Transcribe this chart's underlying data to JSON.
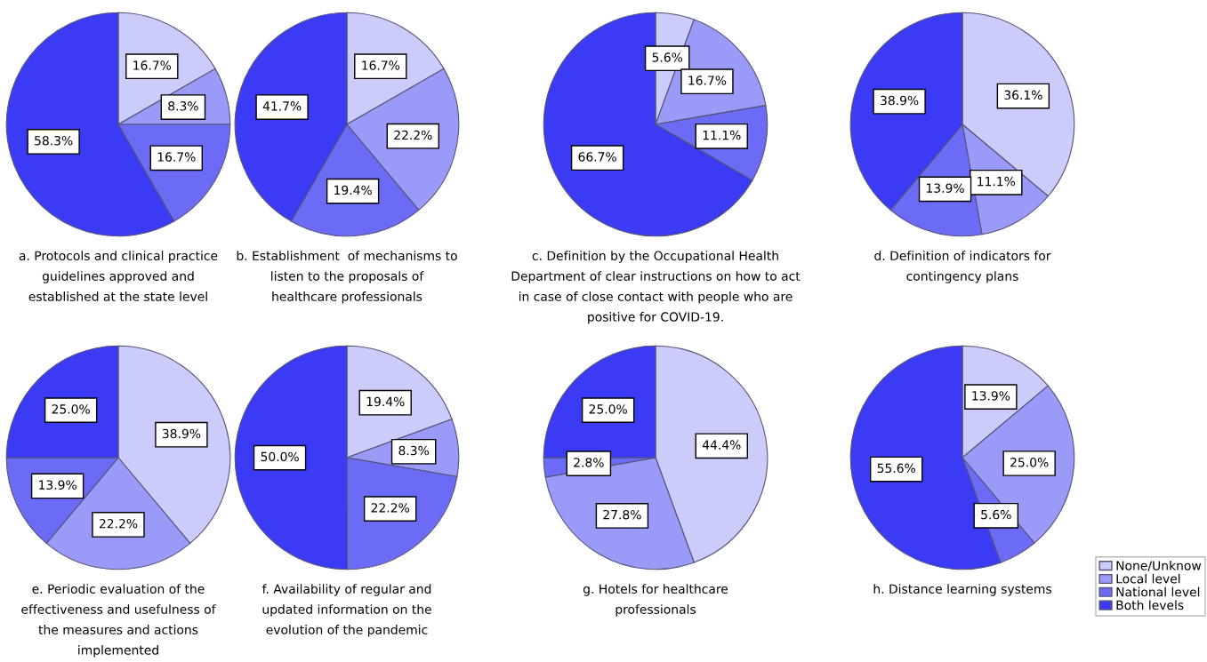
{
  "chart_data": [
    {
      "type": "pie",
      "title": "a. Protocols and clinical practice\nguidelines approved and\nestablished at the state level",
      "categories": [
        "None/Unknow",
        "Local level",
        "National level",
        "Both levels"
      ],
      "values": [
        16.7,
        8.3,
        16.7,
        58.3
      ],
      "colors": [
        "#ccccfa",
        "#9a9af8",
        "#6b6bf6",
        "#3b3bf5"
      ],
      "value_labels": [
        "16.7%",
        "8.3%",
        "16.7%",
        "58.3%"
      ],
      "legend": "right"
    },
    {
      "type": "pie",
      "title": "b. Establishment  of mechanisms to\nlisten to the proposals of\nhealthcare professionals",
      "categories": [
        null,
        null,
        null,
        null
      ],
      "values": [
        16.7,
        22.2,
        19.4,
        41.7
      ],
      "colors": [
        "#ccccfa",
        "#9a9af8",
        "#6b6bf6",
        "#3b3bf5"
      ],
      "value_labels": [
        "16.7%",
        "22.2%",
        "19.4%",
        "41.7%"
      ]
    },
    {
      "type": "pie",
      "title": "c. Definition by the Occupational Health\nDepartment of clear instructions on how to act\nin case of close contact with people who are\npositive for COVID-19.",
      "categories": [
        null,
        null,
        null,
        null
      ],
      "values": [
        5.6,
        16.7,
        11.1,
        66.7
      ],
      "colors": [
        "#ccccfa",
        "#9a9af8",
        "#6b6bf6",
        "#3b3bf5"
      ],
      "value_labels": [
        "5.6%",
        "16.7%",
        "11.1%",
        "66.7%"
      ]
    },
    {
      "type": "pie",
      "title": "d. Definition of indicators for\ncontingency plans",
      "categories": [
        null,
        null,
        null,
        null
      ],
      "values": [
        36.1,
        11.1,
        13.9,
        38.9
      ],
      "colors": [
        "#ccccfa",
        "#9a9af8",
        "#6b6bf6",
        "#3b3bf5"
      ],
      "value_labels": [
        "36.1%",
        "11.1%",
        "13.9%",
        "38.9%"
      ]
    },
    {
      "type": "pie",
      "title": "e. Periodic evaluation of the\neffectiveness and usefulness of\nthe measures and actions\nimplemented",
      "categories": [
        null,
        null,
        null,
        null
      ],
      "values": [
        38.9,
        22.2,
        13.9,
        25.0
      ],
      "colors": [
        "#ccccfa",
        "#9a9af8",
        "#6b6bf6",
        "#3b3bf5"
      ],
      "value_labels": [
        "38.9%",
        "22.2%",
        "13.9%",
        "25.0%"
      ]
    },
    {
      "type": "pie",
      "title": "f. Availability of regular and\nupdated information on the\nevolution of the pandemic",
      "categories": [
        null,
        null,
        null,
        null
      ],
      "values": [
        19.4,
        8.3,
        22.2,
        50.0
      ],
      "colors": [
        "#ccccfa",
        "#9a9af8",
        "#6b6bf6",
        "#3b3bf5"
      ],
      "value_labels": [
        "19.4%",
        "8.3%",
        "22.2%",
        "50.0%"
      ]
    },
    {
      "type": "pie",
      "title": "g. Hotels for healthcare\nprofessionals",
      "categories": [
        null,
        null,
        null,
        null
      ],
      "values": [
        44.4,
        27.8,
        2.8,
        25.0
      ],
      "colors": [
        "#ccccfa",
        "#9a9af8",
        "#6b6bf6",
        "#3b3bf5"
      ],
      "value_labels": [
        "44.4%",
        "27.8%",
        "2.8%",
        "25.0%"
      ]
    },
    {
      "type": "pie",
      "title": "h. Distance learning systems",
      "categories": [
        null,
        null,
        null,
        null
      ],
      "values": [
        13.9,
        25.0,
        5.6,
        55.6
      ],
      "colors": [
        "#ccccfa",
        "#9a9af8",
        "#6b6bf6",
        "#3b3bf5"
      ],
      "value_labels": [
        "13.9%",
        "25.0%",
        "5.6%",
        "55.6%"
      ]
    }
  ]
}
